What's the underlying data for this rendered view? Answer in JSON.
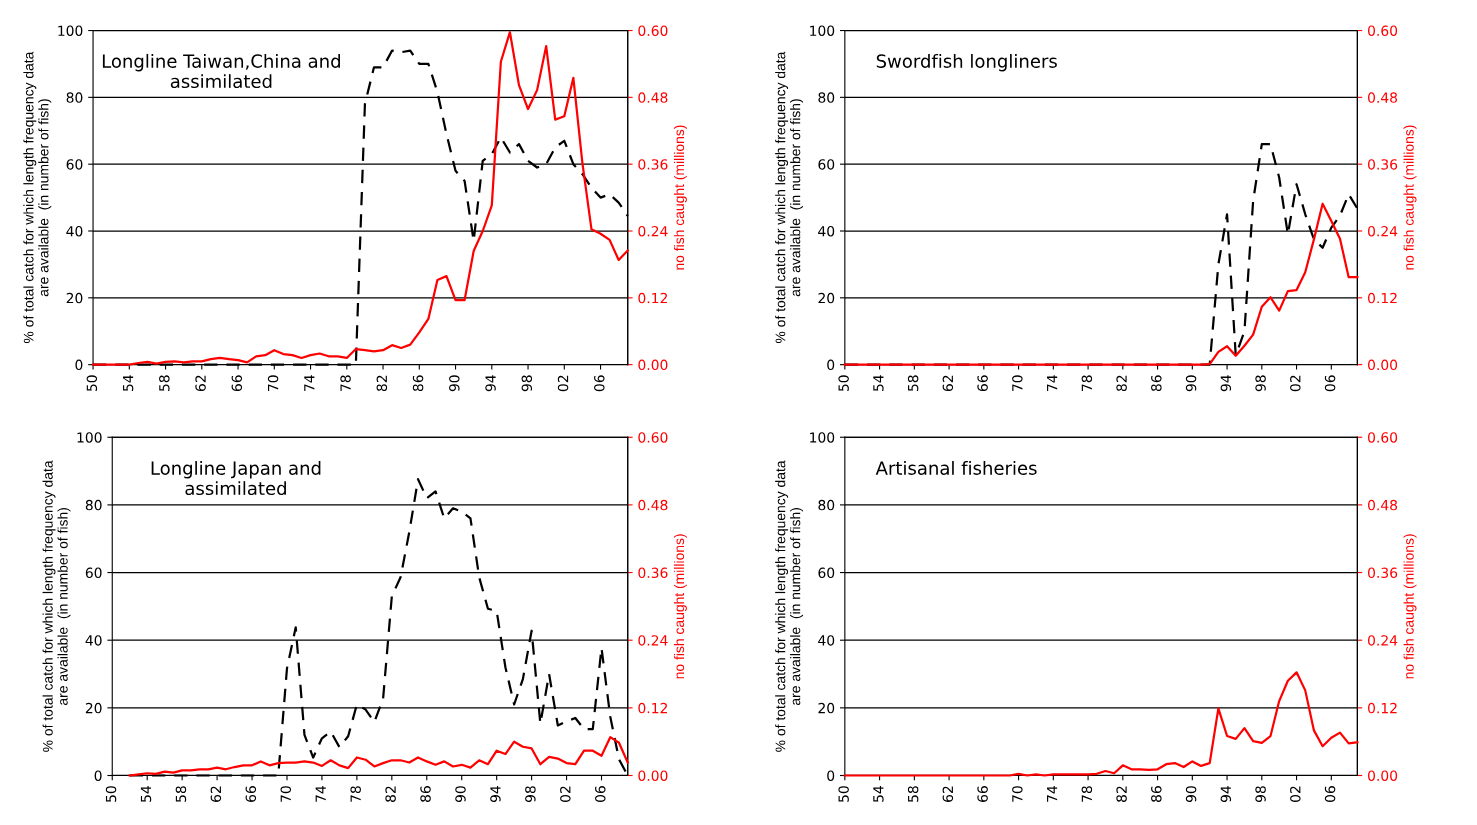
{
  "chart_data": [
    {
      "type": "line",
      "annotations": [
        "Longline Taiwan,China and\nassimilated"
      ],
      "ylabel": "% of total catch for which length frequency data\nare available  (in number of fish)",
      "y2label": "no fish caught (millions)",
      "x": [
        1950,
        1951,
        1952,
        1953,
        1954,
        1955,
        1956,
        1957,
        1958,
        1959,
        1960,
        1961,
        1962,
        1963,
        1964,
        1965,
        1966,
        1967,
        1968,
        1969,
        1970,
        1971,
        1972,
        1973,
        1974,
        1975,
        1976,
        1977,
        1978,
        1979,
        1980,
        1981,
        1982,
        1983,
        1984,
        1985,
        1986,
        1987,
        1988,
        1989,
        1990,
        1991,
        1992,
        1993,
        1994,
        1995,
        1996,
        1997,
        1998,
        1999,
        2000,
        2001,
        2002,
        2003,
        2004,
        2005,
        2006,
        2007,
        2008,
        2009
      ],
      "series": [
        {
          "axis": "y",
          "color": "#000000",
          "line_style": "dashed",
          "values": [
            0,
            0,
            0,
            0,
            0,
            0,
            0,
            0,
            0,
            0,
            0,
            0,
            0,
            0,
            0,
            0,
            0,
            0,
            0,
            0,
            0,
            0,
            0,
            0,
            0,
            0,
            0,
            0,
            0,
            0,
            78,
            89,
            89,
            94,
            93.5,
            94,
            90,
            90,
            81.6,
            69,
            58,
            55,
            37,
            61,
            63,
            68,
            63.5,
            66,
            61,
            59,
            60,
            65,
            67,
            60,
            57,
            53,
            50,
            51,
            48.5,
            44.5
          ]
        },
        {
          "axis": "y2",
          "color": "#ff0000",
          "line_style": "solid",
          "values": [
            0,
            0,
            0,
            0,
            0,
            0.003,
            0.005,
            0.002,
            0.005,
            0.006,
            0.004,
            0.006,
            0.006,
            0.01,
            0.012,
            0.01,
            0.008,
            0.004,
            0.015,
            0.017,
            0.026,
            0.019,
            0.017,
            0.012,
            0.017,
            0.02,
            0.015,
            0.015,
            0.012,
            0.028,
            0.026,
            0.024,
            0.026,
            0.035,
            0.03,
            0.036,
            0.058,
            0.082,
            0.152,
            0.159,
            0.116,
            0.116,
            0.204,
            0.24,
            0.286,
            0.544,
            0.597,
            0.502,
            0.459,
            0.493,
            0.572,
            0.44,
            0.446,
            0.515,
            0.362,
            0.243,
            0.235,
            0.224,
            0.188,
            0.205
          ]
        }
      ],
      "xlim": [
        1950,
        2009
      ],
      "xticks": [
        {
          "value": 1950,
          "label": "50"
        },
        {
          "value": 1954,
          "label": "54"
        },
        {
          "value": 1958,
          "label": "58"
        },
        {
          "value": 1962,
          "label": "62"
        },
        {
          "value": 1966,
          "label": "66"
        },
        {
          "value": 1970,
          "label": "70"
        },
        {
          "value": 1974,
          "label": "74"
        },
        {
          "value": 1978,
          "label": "78"
        },
        {
          "value": 1982,
          "label": "82"
        },
        {
          "value": 1986,
          "label": "86"
        },
        {
          "value": 1990,
          "label": "90"
        },
        {
          "value": 1994,
          "label": "94"
        },
        {
          "value": 1998,
          "label": "98"
        },
        {
          "value": 2002,
          "label": "02"
        },
        {
          "value": 2006,
          "label": "06"
        }
      ],
      "ylim": [
        0,
        100
      ],
      "yticks": [
        0,
        20,
        40,
        60,
        80,
        100
      ],
      "y2lim": [
        0,
        0.6
      ],
      "y2ticks": [
        {
          "value": 0,
          "label": "0.00"
        },
        {
          "value": 0.12,
          "label": "0.12"
        },
        {
          "value": 0.24,
          "label": "0.24"
        },
        {
          "value": 0.36,
          "label": "0.36"
        },
        {
          "value": 0.48,
          "label": "0.48"
        },
        {
          "value": 0.6,
          "label": "0.60"
        }
      ],
      "grid": "y",
      "legend": false
    },
    {
      "type": "line",
      "annotations": [
        "Swordfish longliners"
      ],
      "ylabel": "% of total catch for which length frequency data\nare available  (in number of fish)",
      "y2label": "no fish caught (millions)",
      "x": [
        1950,
        1951,
        1952,
        1953,
        1954,
        1955,
        1956,
        1957,
        1958,
        1959,
        1960,
        1961,
        1962,
        1963,
        1964,
        1965,
        1966,
        1967,
        1968,
        1969,
        1970,
        1971,
        1972,
        1973,
        1974,
        1975,
        1976,
        1977,
        1978,
        1979,
        1980,
        1981,
        1982,
        1983,
        1984,
        1985,
        1986,
        1987,
        1988,
        1989,
        1990,
        1991,
        1992,
        1993,
        1994,
        1995,
        1996,
        1997,
        1998,
        1999,
        2000,
        2001,
        2002,
        2003,
        2004,
        2005,
        2006,
        2007,
        2008,
        2009
      ],
      "series": [
        {
          "axis": "y",
          "color": "#000000",
          "line_style": "dashed",
          "values": [
            0,
            0,
            0,
            0,
            0,
            0,
            0,
            0,
            0,
            0,
            0,
            0,
            0,
            0,
            0,
            0,
            0,
            0,
            0,
            0,
            0,
            0,
            0,
            0,
            0,
            0,
            0,
            0,
            0,
            0,
            0,
            0,
            0,
            0,
            0,
            0,
            0,
            0,
            0,
            0,
            0,
            0,
            0,
            30,
            45,
            2.7,
            10,
            49,
            66,
            66,
            56,
            39,
            54,
            45,
            37.5,
            35,
            41,
            44.6,
            51,
            46.7
          ]
        },
        {
          "axis": "y2",
          "color": "#ff0000",
          "line_style": "solid",
          "values": [
            0,
            0,
            0,
            0,
            0,
            0,
            0,
            0,
            0,
            0,
            0,
            0,
            0,
            0,
            0,
            0,
            0,
            0,
            0,
            0,
            0,
            0,
            0,
            0,
            0,
            0,
            0,
            0,
            0,
            0,
            0,
            0,
            0,
            0,
            0,
            0,
            0,
            0,
            0,
            0,
            0,
            0,
            0.001,
            0.023,
            0.033,
            0.016,
            0.034,
            0.054,
            0.104,
            0.121,
            0.097,
            0.132,
            0.134,
            0.166,
            0.225,
            0.289,
            0.258,
            0.226,
            0.157,
            0.157
          ]
        }
      ],
      "xlim": [
        1950,
        2009
      ],
      "xticks": [
        {
          "value": 1950,
          "label": "50"
        },
        {
          "value": 1954,
          "label": "54"
        },
        {
          "value": 1958,
          "label": "58"
        },
        {
          "value": 1962,
          "label": "62"
        },
        {
          "value": 1966,
          "label": "66"
        },
        {
          "value": 1970,
          "label": "70"
        },
        {
          "value": 1974,
          "label": "74"
        },
        {
          "value": 1978,
          "label": "78"
        },
        {
          "value": 1982,
          "label": "82"
        },
        {
          "value": 1986,
          "label": "86"
        },
        {
          "value": 1990,
          "label": "90"
        },
        {
          "value": 1994,
          "label": "94"
        },
        {
          "value": 1998,
          "label": "98"
        },
        {
          "value": 2002,
          "label": "02"
        },
        {
          "value": 2006,
          "label": "06"
        }
      ],
      "ylim": [
        0,
        100
      ],
      "yticks": [
        0,
        20,
        40,
        60,
        80,
        100
      ],
      "y2lim": [
        0,
        0.6
      ],
      "y2ticks": [
        {
          "value": 0,
          "label": "0.00"
        },
        {
          "value": 0.12,
          "label": "0.12"
        },
        {
          "value": 0.24,
          "label": "0.24"
        },
        {
          "value": 0.36,
          "label": "0.36"
        },
        {
          "value": 0.48,
          "label": "0.48"
        },
        {
          "value": 0.6,
          "label": "0.60"
        }
      ],
      "grid": "y",
      "legend": false
    },
    {
      "type": "line",
      "annotations": [
        "Longline Japan and\nassimilated"
      ],
      "ylabel": "% of total catch for which length frequency data\nare available  (in number of fish)",
      "y2label": "no fish caught (millions)",
      "x": [
        1952,
        1953,
        1954,
        1955,
        1956,
        1957,
        1958,
        1959,
        1960,
        1961,
        1962,
        1963,
        1964,
        1965,
        1966,
        1967,
        1968,
        1969,
        1970,
        1971,
        1972,
        1973,
        1974,
        1975,
        1976,
        1977,
        1978,
        1979,
        1980,
        1981,
        1982,
        1983,
        1984,
        1985,
        1986,
        1987,
        1988,
        1989,
        1990,
        1991,
        1992,
        1993,
        1994,
        1995,
        1996,
        1997,
        1998,
        1999,
        2000,
        2001,
        2002,
        2003,
        2004,
        2005,
        2006,
        2007,
        2008,
        2009
      ],
      "series": [
        {
          "axis": "y",
          "color": "#000000",
          "line_style": "dashed",
          "values": [
            0,
            0,
            0,
            0,
            0,
            0,
            0,
            0,
            0,
            0,
            0,
            0,
            0,
            0,
            0,
            0,
            0,
            0,
            31.7,
            43.8,
            12,
            5.3,
            11,
            13,
            8.4,
            11.6,
            21,
            19.5,
            15.8,
            22.7,
            53,
            58.6,
            72,
            87.6,
            82,
            84,
            76,
            79,
            78,
            76,
            58.6,
            49.3,
            48.6,
            32,
            21,
            28.5,
            42.8,
            15.3,
            30,
            14.8,
            16,
            17,
            13.7,
            13.7,
            37.7,
            17.4,
            4.8,
            0
          ]
        },
        {
          "axis": "y2",
          "color": "#ff0000",
          "line_style": "solid",
          "values": [
            0,
            0.002,
            0.004,
            0.003,
            0.007,
            0.005,
            0.009,
            0.009,
            0.011,
            0.011,
            0.014,
            0.011,
            0.015,
            0.018,
            0.018,
            0.025,
            0.018,
            0.022,
            0.023,
            0.023,
            0.025,
            0.023,
            0.017,
            0.027,
            0.018,
            0.013,
            0.032,
            0.028,
            0.016,
            0.022,
            0.027,
            0.027,
            0.023,
            0.032,
            0.025,
            0.019,
            0.025,
            0.016,
            0.019,
            0.014,
            0.027,
            0.02,
            0.044,
            0.038,
            0.06,
            0.051,
            0.048,
            0.02,
            0.033,
            0.03,
            0.022,
            0.02,
            0.044,
            0.044,
            0.035,
            0.068,
            0.058,
            0.023
          ]
        }
      ],
      "xlim": [
        1950,
        2009
      ],
      "xticks": [
        {
          "value": 1950,
          "label": "50"
        },
        {
          "value": 1954,
          "label": "54"
        },
        {
          "value": 1958,
          "label": "58"
        },
        {
          "value": 1962,
          "label": "62"
        },
        {
          "value": 1966,
          "label": "66"
        },
        {
          "value": 1970,
          "label": "70"
        },
        {
          "value": 1974,
          "label": "74"
        },
        {
          "value": 1978,
          "label": "78"
        },
        {
          "value": 1982,
          "label": "82"
        },
        {
          "value": 1986,
          "label": "86"
        },
        {
          "value": 1990,
          "label": "90"
        },
        {
          "value": 1994,
          "label": "94"
        },
        {
          "value": 1998,
          "label": "98"
        },
        {
          "value": 2002,
          "label": "02"
        },
        {
          "value": 2006,
          "label": "06"
        }
      ],
      "ylim": [
        0,
        100
      ],
      "yticks": [
        0,
        20,
        40,
        60,
        80,
        100
      ],
      "y2lim": [
        0,
        0.6
      ],
      "y2ticks": [
        {
          "value": 0,
          "label": "0.00"
        },
        {
          "value": 0.12,
          "label": "0.12"
        },
        {
          "value": 0.24,
          "label": "0.24"
        },
        {
          "value": 0.36,
          "label": "0.36"
        },
        {
          "value": 0.48,
          "label": "0.48"
        },
        {
          "value": 0.6,
          "label": "0.60"
        }
      ],
      "grid": "y",
      "legend": false
    },
    {
      "type": "line",
      "annotations": [
        "Artisanal fisheries"
      ],
      "ylabel": "% of total catch for which length frequency data\nare available  (in number of fish)",
      "y2label": "no fish caught (millions)",
      "x": [
        1950,
        1951,
        1952,
        1953,
        1954,
        1955,
        1956,
        1957,
        1958,
        1959,
        1960,
        1961,
        1962,
        1963,
        1964,
        1965,
        1966,
        1967,
        1968,
        1969,
        1970,
        1971,
        1972,
        1973,
        1974,
        1975,
        1976,
        1977,
        1978,
        1979,
        1980,
        1981,
        1982,
        1983,
        1984,
        1985,
        1986,
        1987,
        1988,
        1989,
        1990,
        1991,
        1992,
        1993,
        1994,
        1995,
        1996,
        1997,
        1998,
        1999,
        2000,
        2001,
        2002,
        2003,
        2004,
        2005,
        2006,
        2007,
        2008,
        2009
      ],
      "series": [
        {
          "axis": "y2",
          "color": "#ff0000",
          "line_style": "solid",
          "values": [
            0,
            0,
            0,
            0,
            0,
            0,
            0,
            0,
            0,
            0,
            0,
            0,
            0,
            0,
            0,
            0,
            0,
            0,
            0,
            0,
            0.003,
            0,
            0.002,
            0,
            0.002,
            0.002,
            0.002,
            0.002,
            0.002,
            0.003,
            0.008,
            0.004,
            0.018,
            0.011,
            0.011,
            0.01,
            0.011,
            0.02,
            0.022,
            0.015,
            0.025,
            0.017,
            0.022,
            0.119,
            0.07,
            0.065,
            0.084,
            0.061,
            0.058,
            0.07,
            0.132,
            0.168,
            0.183,
            0.151,
            0.08,
            0.052,
            0.067,
            0.076,
            0.057,
            0.059
          ]
        }
      ],
      "xlim": [
        1950,
        2009
      ],
      "xticks": [
        {
          "value": 1950,
          "label": "50"
        },
        {
          "value": 1954,
          "label": "54"
        },
        {
          "value": 1958,
          "label": "58"
        },
        {
          "value": 1962,
          "label": "62"
        },
        {
          "value": 1966,
          "label": "66"
        },
        {
          "value": 1970,
          "label": "70"
        },
        {
          "value": 1974,
          "label": "74"
        },
        {
          "value": 1978,
          "label": "78"
        },
        {
          "value": 1982,
          "label": "82"
        },
        {
          "value": 1986,
          "label": "86"
        },
        {
          "value": 1990,
          "label": "90"
        },
        {
          "value": 1994,
          "label": "94"
        },
        {
          "value": 1998,
          "label": "98"
        },
        {
          "value": 2002,
          "label": "02"
        },
        {
          "value": 2006,
          "label": "06"
        }
      ],
      "ylim": [
        0,
        100
      ],
      "yticks": [
        0,
        20,
        40,
        60,
        80,
        100
      ],
      "y2lim": [
        0,
        0.6
      ],
      "y2ticks": [
        {
          "value": 0,
          "label": "0.00"
        },
        {
          "value": 0.12,
          "label": "0.12"
        },
        {
          "value": 0.24,
          "label": "0.24"
        },
        {
          "value": 0.36,
          "label": "0.36"
        },
        {
          "value": 0.48,
          "label": "0.48"
        },
        {
          "value": 0.6,
          "label": "0.60"
        }
      ],
      "grid": "y",
      "legend": false
    }
  ]
}
